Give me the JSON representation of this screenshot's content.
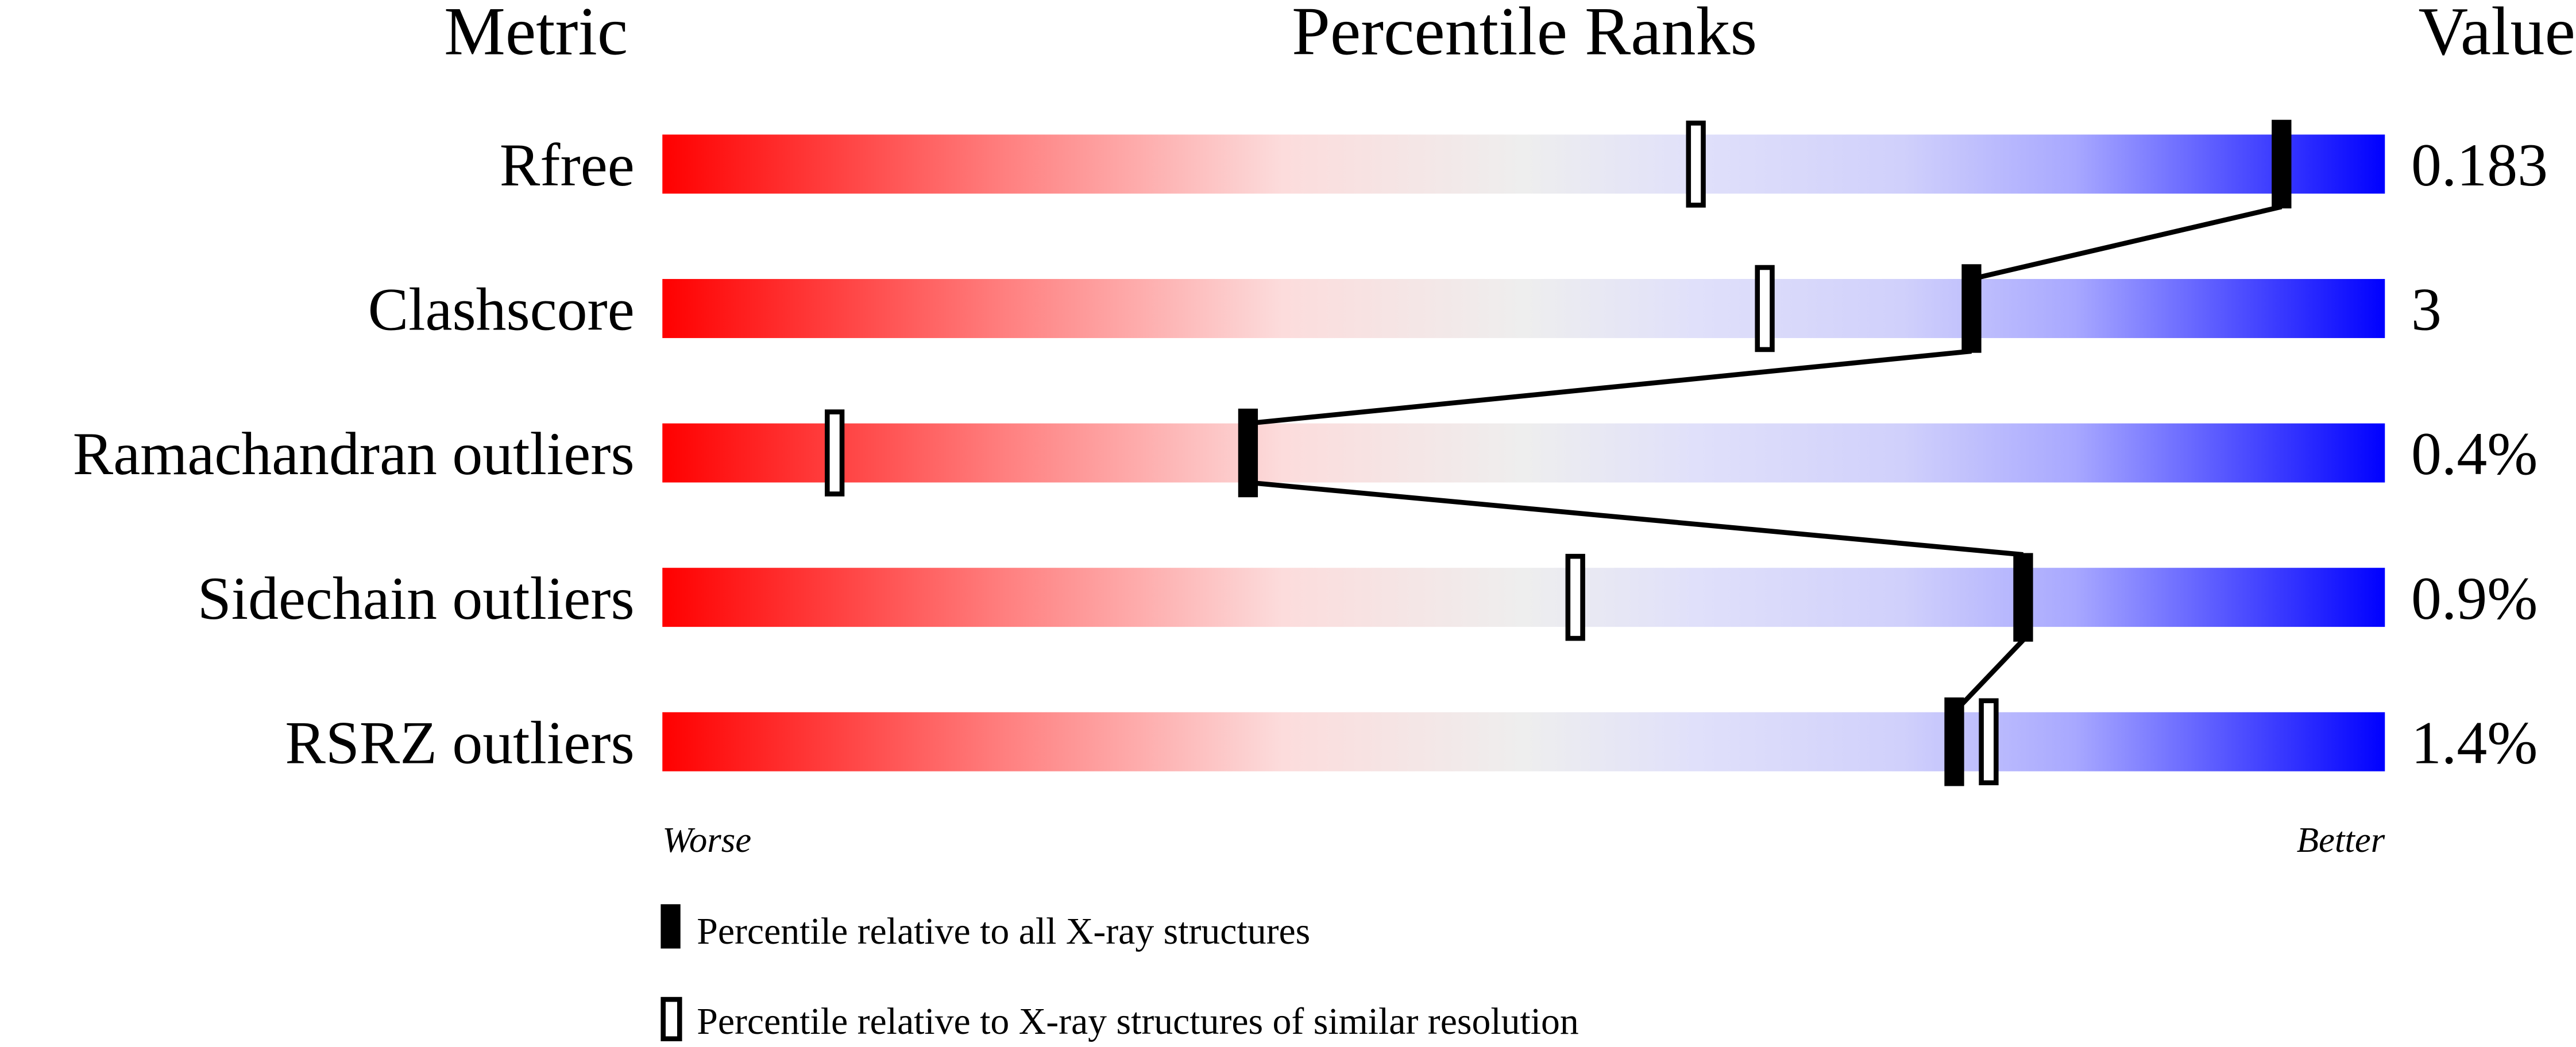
{
  "chart_data": {
    "type": "bar",
    "header": {
      "metric": "Metric",
      "ranks": "Percentile Ranks",
      "value": "Value"
    },
    "categories": [
      "Rfree",
      "Clashscore",
      "Ramachandran outliers",
      "Sidechain outliers",
      "RSRZ outliers"
    ],
    "values_display": [
      "0.183",
      "3",
      "0.4%",
      "0.9%",
      "1.4%"
    ],
    "series": [
      {
        "name": "Percentile relative to all X-ray structures",
        "marker": "filled",
        "values": [
          94,
          76,
          34,
          79,
          75
        ]
      },
      {
        "name": "Percentile relative to X-ray structures of similar resolution",
        "marker": "hollow",
        "values": [
          60,
          64,
          10,
          53,
          77
        ]
      }
    ],
    "xlim": [
      0,
      100
    ],
    "axis_left_label": "Worse",
    "axis_right_label": "Better",
    "gradient_colors": [
      "#ff0000",
      "#ff8080",
      "#fcdcdc",
      "#eeeeee",
      "#e0e0fa",
      "#d0d0fb",
      "#a8a8ff",
      "#0000ff"
    ],
    "legend_position": "bottom"
  }
}
